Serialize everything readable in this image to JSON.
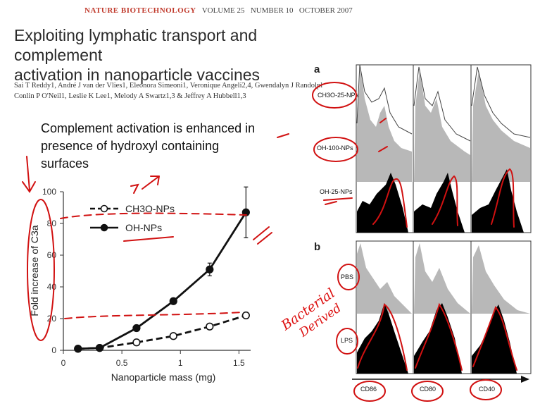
{
  "header": {
    "journal": "NATURE BIOTECHNOLOGY",
    "volume": "VOLUME 25",
    "number": "NUMBER 10",
    "date": "OCTOBER 2007"
  },
  "paper": {
    "title_line1": "Exploiting lymphatic transport and complement",
    "title_line2": "activation in nanoparticle vaccines",
    "authors_line1": "Sai T Reddy1, André J van der Vlies1, Eleonora Simeoni1, Veronique Angeli2,4, Gwendalyn J Randolpl",
    "authors_line2": "Conlin P O'Neil1, Leslie K Lee1, Melody A Swartz1,3 & Jeffrey A Hubbell1,3"
  },
  "slide": {
    "text_line1": "Complement activation is enhanced in",
    "text_line2": "presence of hydroxyl containing",
    "text_line3": "surfaces"
  },
  "chart_data": {
    "type": "line",
    "xlabel": "Nanoparticle mass (mg)",
    "ylabel": "Fold increase of C3a",
    "xlim": [
      0,
      1.6
    ],
    "ylim": [
      0,
      100
    ],
    "xticks": [
      "0",
      "0.5",
      "1",
      "1.5"
    ],
    "yticks": [
      "0",
      "20",
      "40",
      "60",
      "80",
      "100"
    ],
    "legend_position": "top-left",
    "series": [
      {
        "name": "CH3O-NPs",
        "style": "dashed, open circles",
        "x": [
          0.125,
          0.31,
          0.625,
          0.94,
          1.25,
          1.56
        ],
        "y": [
          1,
          1.5,
          5,
          9,
          15,
          22
        ],
        "err": [
          0,
          0,
          0,
          0,
          0,
          0
        ]
      },
      {
        "name": "OH-NPs",
        "style": "solid, filled circles",
        "x": [
          0.125,
          0.31,
          0.625,
          0.94,
          1.25,
          1.56
        ],
        "y": [
          1,
          1.5,
          14,
          31,
          51,
          87
        ],
        "err": [
          0,
          0,
          1,
          1.5,
          4,
          16
        ]
      }
    ]
  },
  "flow_figure": {
    "panel_a": "a",
    "panel_b": "b",
    "row_labels_a": [
      "CH3O-25-NPs",
      "OH-100-NPs",
      "OH-25-NPs"
    ],
    "row_labels_b": [
      "PBS",
      "LPS"
    ],
    "markers": [
      "CD86",
      "CD80",
      "CD40"
    ]
  },
  "annotations": {
    "handwriting_line1": "Bacterial",
    "handwriting_line2": "Derived"
  },
  "colors": {
    "ink": "#d11111",
    "curve_fill_gray": "#b8b8b8",
    "curve_fill_black": "#000000"
  }
}
